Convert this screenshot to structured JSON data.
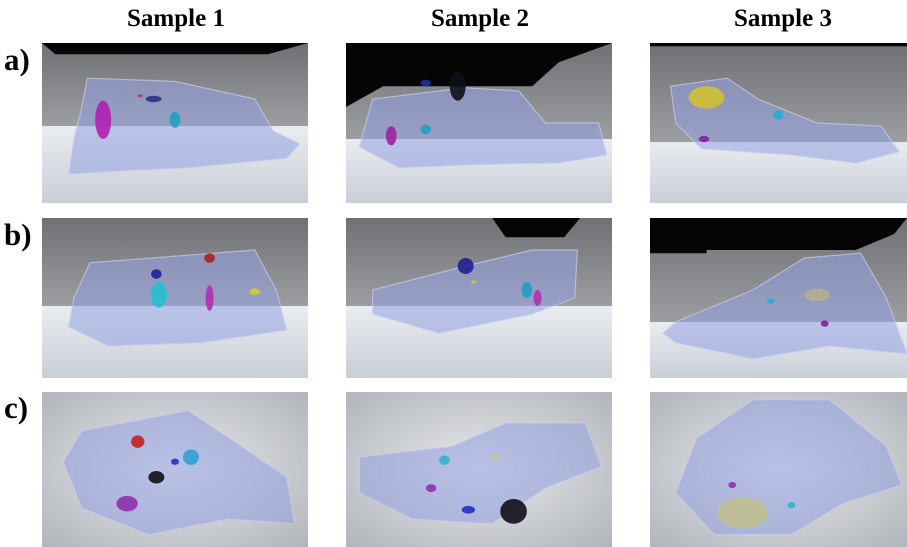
{
  "header": {
    "columns": [
      "Sample 1",
      "Sample 2",
      "Sample 3"
    ]
  },
  "rows": {
    "labels": [
      "a)",
      "b)",
      "c)"
    ]
  }
}
